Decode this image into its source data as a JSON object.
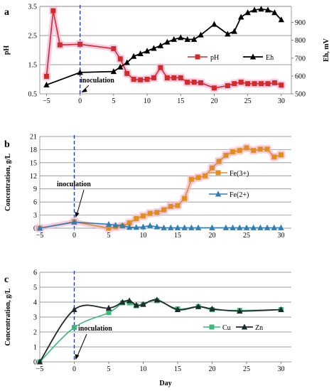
{
  "colors": {
    "pH": "#d22b2b",
    "pH_glow": "#f3bddd",
    "Eh": "#000000",
    "Fe3": "#e08f1d",
    "Fe2": "#2f7fb7",
    "Cu": "#3cb878",
    "Zn": "#1f2a2a",
    "inoculation_line": "#1f3fbf",
    "grid": "#000000"
  },
  "chart_data": [
    {
      "type": "line",
      "panel_label": "a",
      "xlabel": "",
      "ylabel": "pH",
      "ylabel_right": "Eh, mV",
      "x_ticks": [
        "−5",
        "0",
        "5",
        "10",
        "15",
        "20",
        "25",
        "30"
      ],
      "y_ticks": [
        "0.5",
        "1.5",
        "2.5",
        "3.5"
      ],
      "y2_ticks": [
        "500",
        "600",
        "700",
        "800",
        "900"
      ],
      "xlim": [
        -6,
        31.5
      ],
      "ylim": [
        0.5,
        3.5
      ],
      "y2lim": [
        500,
        990
      ],
      "grid": "horizontal",
      "legend": "right",
      "annotation": "inoculation",
      "series": [
        {
          "name": "pH",
          "axis": "left",
          "marker": "square",
          "x": [
            -5,
            -4,
            -3,
            0,
            5,
            6,
            7,
            8,
            9,
            10,
            11,
            12,
            13,
            14,
            15,
            16,
            17,
            18,
            20,
            22,
            23,
            24,
            25,
            26,
            27,
            28,
            29,
            30
          ],
          "y": [
            1.1,
            3.35,
            2.18,
            2.2,
            2.05,
            1.7,
            1.2,
            1.0,
            0.98,
            1.0,
            1.05,
            1.4,
            1.05,
            1.05,
            1.05,
            0.9,
            0.9,
            0.88,
            0.7,
            0.78,
            0.85,
            0.9,
            0.85,
            0.85,
            0.85,
            0.85,
            0.88,
            0.8
          ]
        },
        {
          "name": "Eh",
          "axis": "right",
          "marker": "triangle",
          "x": [
            -5,
            0,
            5,
            6,
            7,
            8,
            9,
            10,
            11,
            12,
            13,
            14,
            15,
            16,
            17,
            18,
            20,
            22,
            23,
            24,
            25,
            26,
            27,
            28,
            29,
            30
          ],
          "y": [
            550,
            620,
            625,
            650,
            675,
            710,
            725,
            740,
            755,
            770,
            790,
            805,
            815,
            805,
            805,
            830,
            890,
            835,
            850,
            930,
            955,
            970,
            975,
            970,
            955,
            915
          ]
        }
      ]
    },
    {
      "type": "line",
      "panel_label": "b",
      "xlabel": "",
      "ylabel": "Concentration, g/L",
      "x_ticks": [
        "−5",
        "0",
        "5",
        "10",
        "15",
        "20",
        "25",
        "30"
      ],
      "y_ticks": [
        "0",
        "3",
        "6",
        "9",
        "12",
        "15",
        "18",
        "21"
      ],
      "xlim": [
        -5,
        31.5
      ],
      "ylim": [
        0,
        21
      ],
      "grid": "horizontal",
      "legend": "right",
      "annotation": "inoculation",
      "series": [
        {
          "name": "Fe(3+)",
          "marker": "square",
          "x": [
            -5,
            0,
            5,
            6,
            7,
            8,
            9,
            10,
            11,
            12,
            13,
            14,
            15,
            16,
            17,
            18,
            19,
            20,
            21,
            22,
            23,
            24,
            25,
            26,
            27,
            28,
            29,
            30
          ],
          "y": [
            0,
            1.5,
            0,
            0.3,
            0.5,
            1.2,
            2.2,
            2.8,
            3.4,
            3.6,
            4.2,
            5.0,
            5.2,
            6.8,
            11.2,
            11.6,
            12.0,
            13.8,
            15.3,
            16.7,
            17.5,
            17.8,
            18.4,
            17.8,
            18.1,
            18.1,
            16.3,
            16.8
          ]
        },
        {
          "name": "Fe(2+)",
          "marker": "triangle",
          "x": [
            -5,
            0,
            5,
            6,
            7,
            8,
            9,
            10,
            11,
            12,
            13,
            14,
            15,
            16,
            17,
            18,
            20,
            22,
            23,
            24,
            25,
            26,
            27,
            28,
            29,
            30
          ],
          "y": [
            0,
            1.4,
            0.9,
            0.7,
            0.6,
            0.2,
            0.2,
            0.3,
            0.6,
            0.3,
            0.1,
            0.1,
            0.1,
            0.1,
            0.1,
            0.1,
            0.1,
            0.1,
            0.1,
            0.1,
            0.1,
            0.1,
            0.1,
            0.1,
            0.1,
            0.1
          ]
        }
      ]
    },
    {
      "type": "line",
      "panel_label": "c",
      "xlabel": "Day",
      "ylabel": "Concentration, g/L",
      "x_ticks": [
        "−5",
        "0",
        "5",
        "10",
        "15",
        "20",
        "25",
        "30"
      ],
      "y_ticks": [
        "0",
        "1",
        "2",
        "3",
        "4",
        "5",
        "6"
      ],
      "xlim": [
        -5,
        31.5
      ],
      "ylim": [
        0,
        6
      ],
      "grid": "horizontal",
      "legend": "right",
      "annotation": "inoculation",
      "series": [
        {
          "name": "Cu",
          "marker": "square",
          "x": [
            -5,
            0,
            5,
            7,
            8,
            9,
            10,
            12,
            15,
            18,
            20,
            24,
            30
          ],
          "y": [
            0,
            2.3,
            3.3,
            3.95,
            3.95,
            3.75,
            3.85,
            4.1,
            3.55,
            3.7,
            3.5,
            3.45,
            3.5
          ]
        },
        {
          "name": "Zn",
          "marker": "triangle",
          "x": [
            -5,
            0,
            5,
            7,
            8,
            9,
            10,
            12,
            15,
            18,
            20,
            24,
            30
          ],
          "y": [
            0,
            3.5,
            3.6,
            4.0,
            4.1,
            3.8,
            3.85,
            4.15,
            3.5,
            3.7,
            3.55,
            3.4,
            3.5
          ]
        }
      ]
    }
  ]
}
